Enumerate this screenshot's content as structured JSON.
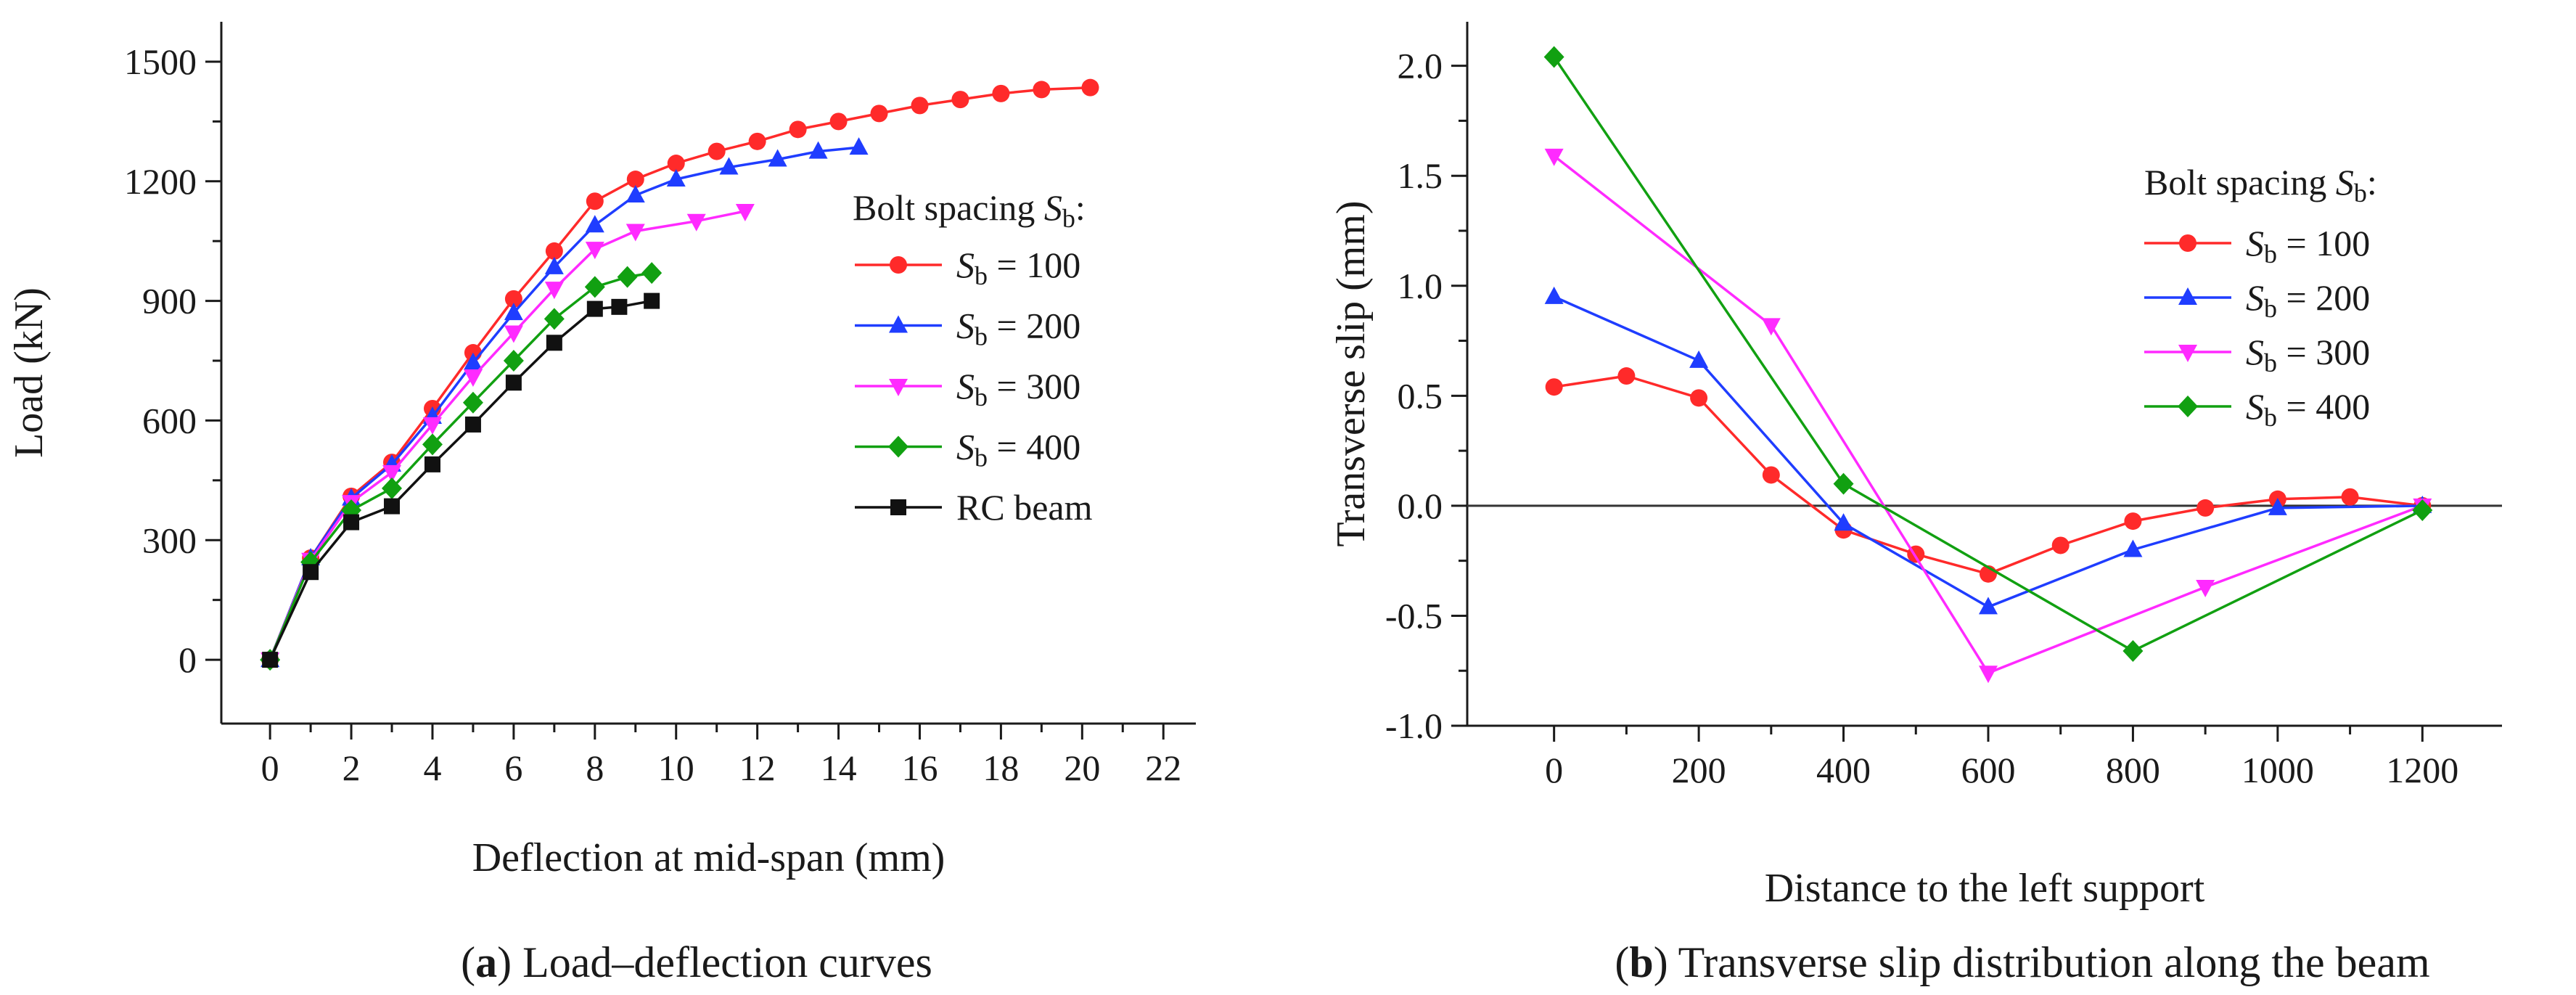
{
  "colors": {
    "red": "#ff2a2a",
    "blue": "#1f3dff",
    "magenta": "#ff2aff",
    "green": "#11a011",
    "black": "#111111",
    "axis": "#1a1a1a"
  },
  "chart_data": [
    {
      "type": "line",
      "caption": {
        "tag": "a",
        "open": "(",
        "close": ")",
        "text": " Load–deflection curves"
      },
      "title": "",
      "xlabel": "Deflection at mid-span (mm)",
      "ylabel": "Load (kN)",
      "xlim": [
        -1.2,
        22.8
      ],
      "ylim": [
        -160,
        1600
      ],
      "xticks": [
        0,
        2,
        4,
        6,
        8,
        10,
        12,
        14,
        16,
        18,
        20,
        22
      ],
      "yticks": [
        0,
        300,
        600,
        900,
        1200,
        1500
      ],
      "legend": {
        "title_prefix": "Bolt spacing ",
        "title_symbol": "S",
        "title_sub": "b",
        "title_suffix": ":",
        "position": "right-middle"
      },
      "series": [
        {
          "name": "Sb = 100",
          "symbol": "S",
          "sub": "b",
          "label_rest": " = 100",
          "color_key": "red",
          "marker": "circle",
          "x": [
            0,
            1,
            2,
            3,
            4,
            5,
            6,
            7,
            8,
            9,
            10,
            11,
            12,
            13,
            14,
            15,
            16,
            17,
            18,
            19,
            20.2
          ],
          "y": [
            0,
            255,
            410,
            495,
            630,
            770,
            905,
            1025,
            1150,
            1205,
            1245,
            1275,
            1300,
            1330,
            1350,
            1370,
            1390,
            1405,
            1420,
            1430,
            1435
          ]
        },
        {
          "name": "Sb = 200",
          "symbol": "S",
          "sub": "b",
          "label_rest": " = 200",
          "color_key": "blue",
          "marker": "triangle-up",
          "x": [
            0,
            1,
            2,
            3,
            4,
            5,
            6,
            7,
            8,
            9,
            10,
            11.3,
            12.5,
            13.5,
            14.5
          ],
          "y": [
            0,
            255,
            405,
            490,
            610,
            745,
            870,
            985,
            1090,
            1165,
            1205,
            1235,
            1255,
            1275,
            1285
          ]
        },
        {
          "name": "Sb = 300",
          "symbol": "S",
          "sub": "b",
          "label_rest": " = 300",
          "color_key": "magenta",
          "marker": "triangle-down",
          "x": [
            0,
            1,
            2,
            3,
            4,
            5,
            6,
            7,
            8,
            9,
            10.5,
            11.7
          ],
          "y": [
            0,
            250,
            395,
            470,
            590,
            710,
            820,
            930,
            1030,
            1075,
            1100,
            1125
          ]
        },
        {
          "name": "Sb = 400",
          "symbol": "S",
          "sub": "b",
          "label_rest": " = 400",
          "color_key": "green",
          "marker": "diamond",
          "x": [
            0,
            1,
            2,
            3,
            4,
            5,
            6,
            7,
            8,
            8.8,
            9.4
          ],
          "y": [
            0,
            245,
            375,
            430,
            540,
            645,
            750,
            855,
            935,
            960,
            970
          ]
        },
        {
          "name": "RC beam",
          "symbol": "",
          "sub": "",
          "label_rest": "RC beam",
          "color_key": "black",
          "marker": "square",
          "x": [
            0,
            1,
            2,
            3,
            4,
            5,
            6,
            7,
            8,
            8.6,
            9.4
          ],
          "y": [
            0,
            220,
            345,
            385,
            490,
            590,
            695,
            795,
            880,
            885,
            900
          ]
        }
      ]
    },
    {
      "type": "line",
      "caption": {
        "tag": "b",
        "open": "(",
        "close": ")",
        "text": " Transverse slip distribution along the beam"
      },
      "title": "",
      "xlabel": "Distance to the left support",
      "ylabel": "Transverse slip (mm)",
      "xlim": [
        -120,
        1310
      ],
      "ylim": [
        -1.0,
        2.2
      ],
      "xticks": [
        0,
        200,
        400,
        600,
        800,
        1000,
        1200
      ],
      "yticks": [
        -1.0,
        -0.5,
        0.0,
        0.5,
        1.0,
        1.5,
        2.0
      ],
      "ytick_labels": [
        "-1.0",
        "-0.5",
        "0.0",
        "0.5",
        "1.0",
        "1.5",
        "2.0"
      ],
      "zero_line": true,
      "legend": {
        "title_prefix": "Bolt spacing ",
        "title_symbol": "S",
        "title_sub": "b",
        "title_suffix": ":",
        "position": "top-right"
      },
      "series": [
        {
          "name": "Sb = 100",
          "symbol": "S",
          "sub": "b",
          "label_rest": " = 100",
          "color_key": "red",
          "marker": "circle",
          "x": [
            0,
            100,
            200,
            300,
            400,
            500,
            600,
            700,
            800,
            900,
            1000,
            1100,
            1200
          ],
          "y": [
            0.54,
            0.59,
            0.49,
            0.14,
            -0.11,
            -0.22,
            -0.31,
            -0.18,
            -0.07,
            -0.01,
            0.03,
            0.04,
            0.0
          ]
        },
        {
          "name": "Sb = 200",
          "symbol": "S",
          "sub": "b",
          "label_rest": " = 200",
          "color_key": "blue",
          "marker": "triangle-up",
          "x": [
            0,
            200,
            400,
            600,
            800,
            1000,
            1200
          ],
          "y": [
            0.95,
            0.66,
            -0.08,
            -0.46,
            -0.2,
            -0.01,
            0.0
          ]
        },
        {
          "name": "Sb = 300",
          "symbol": "S",
          "sub": "b",
          "label_rest": " = 300",
          "color_key": "magenta",
          "marker": "triangle-down",
          "x": [
            0,
            300,
            600,
            900,
            1200
          ],
          "y": [
            1.59,
            0.82,
            -0.76,
            -0.37,
            0.0
          ]
        },
        {
          "name": "Sb = 400",
          "symbol": "S",
          "sub": "b",
          "label_rest": " = 400",
          "color_key": "green",
          "marker": "diamond",
          "x": [
            0,
            400,
            800,
            1200
          ],
          "y": [
            2.04,
            0.1,
            -0.66,
            -0.02
          ]
        }
      ]
    }
  ]
}
